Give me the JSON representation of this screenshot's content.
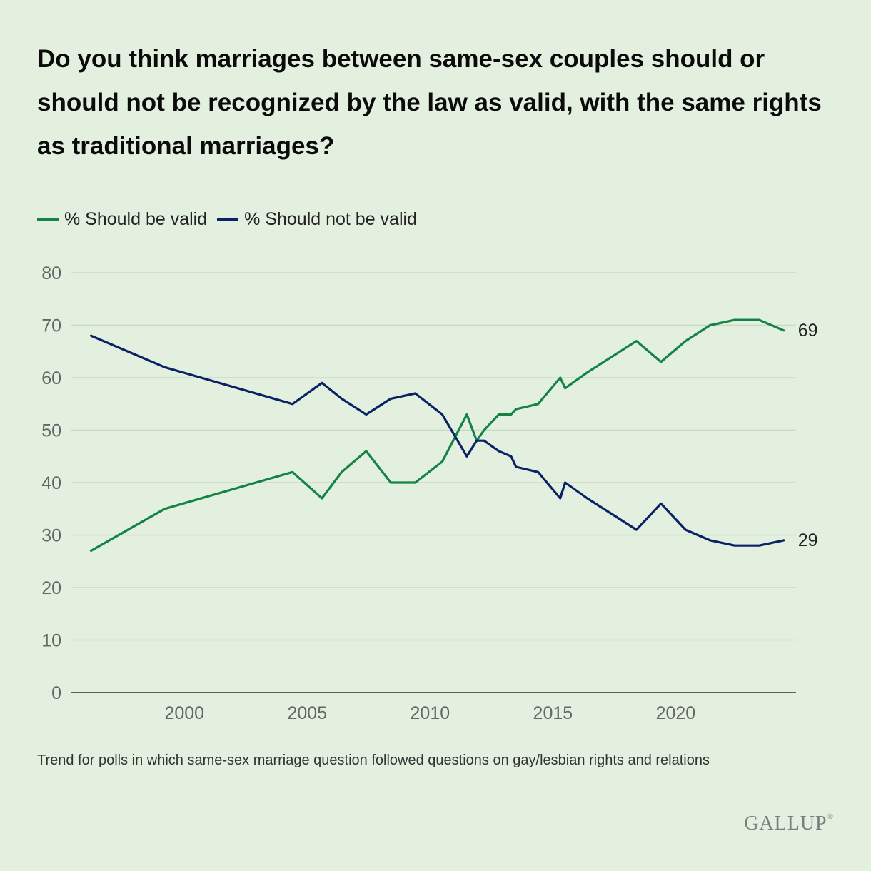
{
  "title": "Do you think marriages between same-sex couples should or should not be recognized by the law as valid, with the same rights as traditional marriages?",
  "footnote": "Trend for polls in which same-sex marriage question followed questions on gay/lesbian rights and relations",
  "logo": {
    "text": "GALLUP",
    "mark": "®"
  },
  "colors": {
    "valid": "#138445",
    "not_valid": "#0b2265",
    "grid": "#c9d9c6",
    "axis": "#333333",
    "tick_text": "#666666"
  },
  "chart_data": {
    "type": "line",
    "title": "Do you think marriages between same-sex couples should or should not be recognized by the law as valid, with the same rights as traditional marriages?",
    "xlabel": "",
    "ylabel": "",
    "xlim": [
      1995.4,
      2024.9
    ],
    "ylim": [
      0,
      80
    ],
    "yticks": [
      0,
      10,
      20,
      30,
      40,
      50,
      60,
      70,
      80
    ],
    "xticks": [
      2000,
      2005,
      2010,
      2015,
      2020
    ],
    "grid": true,
    "legend_position": "top-left",
    "series": [
      {
        "name": "% Should be valid",
        "color": "#138445",
        "end_label": "69",
        "x": [
          1996.2,
          1999.2,
          2004.4,
          2005.6,
          2006.4,
          2007.4,
          2008.4,
          2009.4,
          2010.5,
          2011.5,
          2011.9,
          2012.2,
          2012.8,
          2013.3,
          2013.5,
          2014.4,
          2015.3,
          2015.5,
          2016.4,
          2018.4,
          2019.4,
          2020.4,
          2021.4,
          2022.4,
          2023.4,
          2024.4
        ],
        "values": [
          27,
          35,
          42,
          37,
          42,
          46,
          40,
          40,
          44,
          53,
          48,
          50,
          53,
          53,
          54,
          55,
          60,
          58,
          61,
          67,
          63,
          67,
          70,
          71,
          71,
          69
        ]
      },
      {
        "name": "% Should not be valid",
        "color": "#0b2265",
        "end_label": "29",
        "x": [
          1996.2,
          1999.2,
          2004.4,
          2005.6,
          2006.4,
          2007.4,
          2008.4,
          2009.4,
          2010.5,
          2011.5,
          2011.9,
          2012.2,
          2012.8,
          2013.3,
          2013.5,
          2014.4,
          2015.3,
          2015.5,
          2016.4,
          2018.4,
          2019.4,
          2020.4,
          2021.4,
          2022.4,
          2023.4,
          2024.4
        ],
        "values": [
          68,
          62,
          55,
          59,
          56,
          53,
          56,
          57,
          53,
          45,
          48,
          48,
          46,
          45,
          43,
          42,
          37,
          40,
          37,
          31,
          36,
          31,
          29,
          28,
          28,
          29
        ]
      }
    ]
  }
}
